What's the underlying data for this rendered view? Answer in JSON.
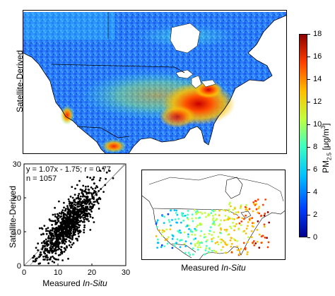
{
  "top_map": {
    "ylabel": "Satellite-Derived"
  },
  "colorbar": {
    "label_main": "PM",
    "label_sub": "2.5",
    "label_unit_open": " [μg/m",
    "label_unit_sup": "3",
    "label_unit_close": "]",
    "ticks": [
      "18",
      "16",
      "14",
      "12",
      "10",
      "8",
      "6",
      "4",
      "2",
      "0"
    ],
    "range": [
      0,
      18
    ],
    "colors": [
      "#00008f",
      "#0040ff",
      "#00c0ff",
      "#40ffbf",
      "#c0ff40",
      "#ffbf00",
      "#ff4000",
      "#8f0000"
    ]
  },
  "bottom_map": {
    "xlabel_prefix": "Measured ",
    "xlabel_italic": "In-Situ"
  },
  "chart_data": {
    "type": "scatter",
    "xlabel_prefix": "Measured ",
    "xlabel_italic": "In-Situ",
    "ylabel": "Satellite-Derived",
    "xlim": [
      0,
      30
    ],
    "ylim": [
      0,
      30
    ],
    "xticks": [
      "0",
      "10",
      "20",
      "30"
    ],
    "yticks": [
      "0",
      "10",
      "20",
      "30"
    ],
    "annotation_line1": "y = 1.07x - 1.75; r = 0.77",
    "annotation_line2": "n = 1057",
    "fit": {
      "slope": 1.07,
      "intercept": -1.75
    },
    "r": 0.77,
    "n": 1057,
    "one_to_one_line": true
  }
}
